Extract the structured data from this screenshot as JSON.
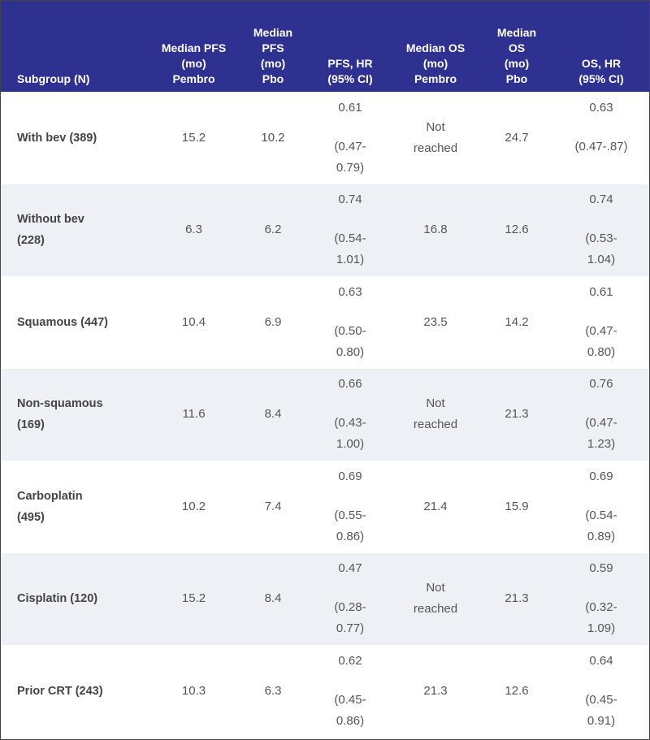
{
  "headers": [
    [
      "Subgroup (N)"
    ],
    [
      "Median PFS",
      "(mo)",
      "Pembro"
    ],
    [
      "Median",
      "PFS",
      "(mo)",
      "Pbo"
    ],
    [
      "PFS, HR",
      "(95% CI)"
    ],
    [
      "Median OS",
      "(mo)",
      "Pembro"
    ],
    [
      "Median",
      "OS",
      "(mo)",
      "Pbo"
    ],
    [
      "OS, HR",
      "(95% CI)"
    ]
  ],
  "rows": [
    {
      "subgroup": [
        "With bev (389)"
      ],
      "pfs_pembro": [
        "15.2"
      ],
      "pfs_pbo": "10.2",
      "pfs_hr": "0.61",
      "pfs_ci": [
        "(0.47-",
        "0.79)"
      ],
      "os_pembro": [
        "Not",
        "reached"
      ],
      "os_pbo": "24.7",
      "os_hr": "0.63",
      "os_ci": [
        "(0.47-.87)"
      ]
    },
    {
      "subgroup": [
        "Without bev",
        "(228)"
      ],
      "pfs_pembro": [
        "6.3"
      ],
      "pfs_pbo": "6.2",
      "pfs_hr": "0.74",
      "pfs_ci": [
        "(0.54-",
        "1.01)"
      ],
      "os_pembro": [
        "16.8"
      ],
      "os_pbo": "12.6",
      "os_hr": "0.74",
      "os_ci": [
        "(0.53-",
        "1.04)"
      ]
    },
    {
      "subgroup": [
        "Squamous (447)"
      ],
      "pfs_pembro": [
        "10.4"
      ],
      "pfs_pbo": "6.9",
      "pfs_hr": "0.63",
      "pfs_ci": [
        "(0.50-",
        "0.80)"
      ],
      "os_pembro": [
        "23.5"
      ],
      "os_pbo": "14.2",
      "os_hr": "0.61",
      "os_ci": [
        "(0.47-",
        "0.80)"
      ]
    },
    {
      "subgroup": [
        "Non-squamous",
        "(169)"
      ],
      "pfs_pembro": [
        "11.6"
      ],
      "pfs_pbo": "8.4",
      "pfs_hr": "0.66",
      "pfs_ci": [
        "(0.43-",
        "1.00)"
      ],
      "os_pembro": [
        "Not",
        "reached"
      ],
      "os_pbo": "21.3",
      "os_hr": "0.76",
      "os_ci": [
        "(0.47-",
        "1.23)"
      ]
    },
    {
      "subgroup": [
        "Carboplatin",
        "(495)"
      ],
      "pfs_pembro": [
        "10.2"
      ],
      "pfs_pbo": "7.4",
      "pfs_hr": "0.69",
      "pfs_ci": [
        "(0.55-",
        "0.86)"
      ],
      "os_pembro": [
        "21.4"
      ],
      "os_pbo": "15.9",
      "os_hr": "0.69",
      "os_ci": [
        "(0.54-",
        "0.89)"
      ]
    },
    {
      "subgroup": [
        "Cisplatin (120)"
      ],
      "pfs_pembro": [
        "15.2"
      ],
      "pfs_pbo": "8.4",
      "pfs_hr": "0.47",
      "pfs_ci": [
        "(0.28-",
        "0.77)"
      ],
      "os_pembro": [
        "Not",
        "reached"
      ],
      "os_pbo": "21.3",
      "os_hr": "0.59",
      "os_ci": [
        "(0.32-",
        "1.09)"
      ]
    },
    {
      "subgroup": [
        "Prior CRT (243)"
      ],
      "pfs_pembro": [
        "10.3"
      ],
      "pfs_pbo": "6.3",
      "pfs_hr": "0.62",
      "pfs_ci": [
        "(0.45-",
        "0.86)"
      ],
      "os_pembro": [
        "21.3"
      ],
      "os_pbo": "12.6",
      "os_hr": "0.64",
      "os_ci": [
        "(0.45-",
        "0.91)"
      ]
    }
  ],
  "colors": {
    "header_bg": "#2f3190",
    "header_text": "#ffffff",
    "alt_row_bg": "#eef0f6"
  }
}
